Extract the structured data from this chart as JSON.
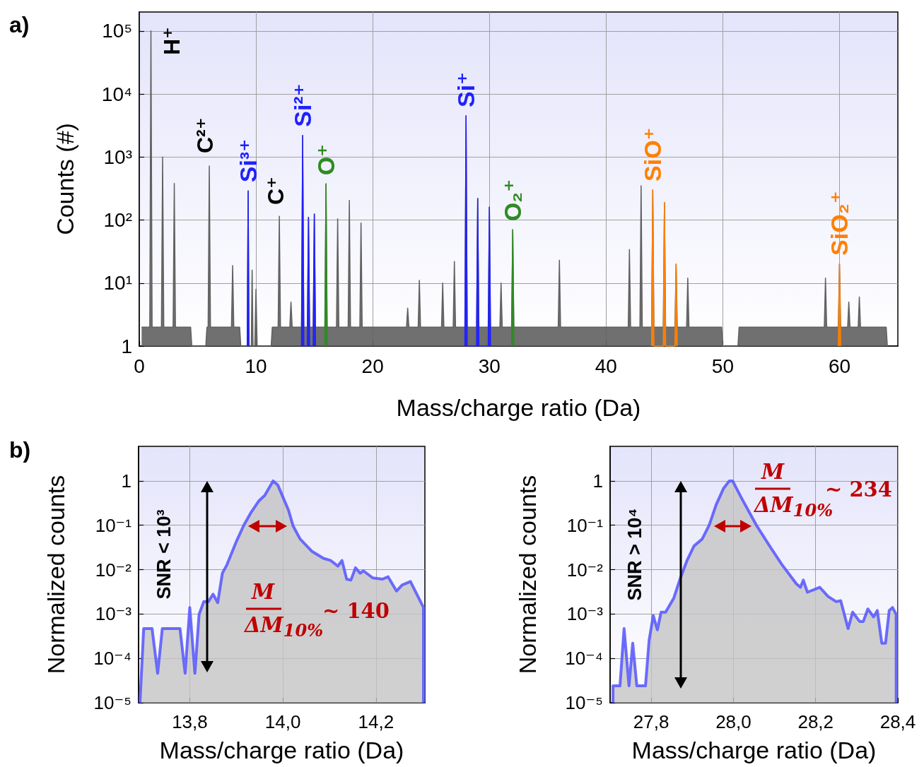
{
  "chart_data": [
    {
      "type": "area",
      "title": "a)",
      "xlabel": "Mass/charge ratio (Da)",
      "ylabel": "Counts (#)",
      "xlim": [
        0,
        65
      ],
      "xticks": [
        0,
        10,
        20,
        30,
        40,
        50,
        60
      ],
      "ylim": [
        1,
        200000
      ],
      "yticks": [
        {
          "value": 1,
          "label": "1"
        },
        {
          "value": 10,
          "label": "10¹"
        },
        {
          "value": 100,
          "label": "10²"
        },
        {
          "value": 1000,
          "label": "10³"
        },
        {
          "value": 10000,
          "label": "10⁴"
        },
        {
          "value": 100000,
          "label": "10⁵"
        }
      ],
      "log": "y",
      "grid": true,
      "annotations": [
        "H⁺",
        "C²⁺",
        "C⁺"
      ],
      "series": [
        {
          "color": "#606060",
          "x": [
            0.2,
            0.9,
            1,
            1.1,
            1.9,
            2,
            2.1,
            2.9,
            3,
            3.1,
            4.4,
            4.5,
            5.7,
            5.8,
            5.9,
            6,
            6.1,
            7.9,
            8,
            8.1,
            8.6,
            8.7,
            9.25,
            9.33,
            9.4,
            9.6,
            9.67,
            9.75,
            9.9,
            10,
            10.1,
            11.3,
            11.4,
            11.9,
            12,
            12.1,
            12.9,
            13,
            13.1,
            13.9,
            14,
            14.1,
            14.4,
            14.5,
            14.6,
            14.9,
            15,
            15.1,
            15.9,
            16,
            16.1,
            16.9,
            17,
            17.1,
            17.9,
            18,
            18.1,
            18.9,
            19,
            19.1,
            22.9,
            23,
            23.1,
            23.9,
            24,
            24.1,
            25.9,
            26,
            26.1,
            26.9,
            27,
            27.1,
            27.9,
            28,
            28.1,
            28.9,
            29,
            29.1,
            29.9,
            30,
            30.1,
            30.9,
            31,
            31.1,
            31.9,
            32,
            32.1,
            35.9,
            36,
            36.1,
            41.9,
            42,
            42.1,
            42.9,
            43,
            43.1,
            43.9,
            44,
            44.1,
            44.9,
            45,
            45.1,
            45.9,
            46,
            46.1,
            46.9,
            47,
            47.1,
            49.9,
            50,
            51.3,
            51.4,
            58.7,
            58.8,
            58.9,
            59.9,
            60,
            60.1,
            60.7,
            60.8,
            60.9,
            61.6,
            61.7,
            61.8,
            64,
            64.1
          ],
          "values": [
            2,
            2,
            100000,
            2,
            2,
            1000,
            2,
            2,
            380,
            2,
            2,
            1,
            1,
            2,
            2,
            720,
            2,
            2,
            19,
            2,
            2,
            1,
            1,
            290,
            1,
            1,
            16,
            1,
            1,
            8,
            1,
            1,
            2,
            2,
            115,
            2,
            2,
            5,
            2,
            2,
            2200,
            2,
            2,
            110,
            2,
            2,
            125,
            2,
            2,
            375,
            2,
            2,
            105,
            2,
            2,
            205,
            2,
            2,
            90,
            2,
            2,
            4,
            2,
            2,
            11,
            2,
            2,
            10,
            2,
            2,
            22,
            2,
            2,
            4500,
            2,
            2,
            220,
            2,
            2,
            160,
            2,
            2,
            10,
            2,
            2,
            70,
            2,
            2,
            23,
            2,
            2,
            34,
            2,
            2,
            350,
            2,
            2,
            300,
            2,
            2,
            190,
            2,
            2,
            20,
            2,
            2,
            12,
            2,
            2,
            1,
            1,
            2,
            2,
            12,
            2,
            2,
            20,
            2,
            2,
            5,
            2,
            2,
            6,
            2,
            2,
            1
          ]
        },
        {
          "name": "Si³⁺",
          "color": "#2020ff",
          "x": [
            9.25,
            9.33,
            9.4
          ],
          "values": [
            1,
            290,
            1
          ]
        },
        {
          "name": "Si²⁺",
          "color": "#2020ff",
          "x": [
            13.9,
            14,
            14.1,
            14.4,
            14.5,
            14.6,
            14.9,
            15,
            15.1
          ],
          "values": [
            1,
            2200,
            1,
            1,
            110,
            1,
            1,
            125,
            1
          ]
        },
        {
          "name": "Si⁺",
          "color": "#2020ff",
          "x": [
            27.9,
            28,
            28.1,
            28.9,
            29,
            29.1,
            29.9,
            30,
            30.1
          ],
          "values": [
            1,
            4500,
            1,
            1,
            220,
            1,
            1,
            160,
            1
          ]
        },
        {
          "name": "O⁺",
          "color": "#2e8b22",
          "x": [
            15.9,
            16,
            16.1
          ],
          "values": [
            1,
            375,
            1
          ]
        },
        {
          "name": "O₂⁺",
          "color": "#2e8b22",
          "x": [
            31.9,
            32,
            32.1
          ],
          "values": [
            1,
            70,
            1
          ]
        },
        {
          "name": "SiO⁺",
          "color": "#ff8000",
          "x": [
            43.9,
            44,
            44.1,
            44.9,
            45,
            45.1,
            45.9,
            46,
            46.1
          ],
          "values": [
            1,
            300,
            1,
            1,
            190,
            1,
            1,
            20,
            1
          ]
        },
        {
          "name": "SiO₂⁺",
          "color": "#ff8000",
          "x": [
            59.9,
            60,
            60.1
          ],
          "values": [
            1,
            20,
            1
          ]
        }
      ]
    },
    {
      "type": "area",
      "title": "b)",
      "xlabel": "Mass/charge ratio (Da)",
      "ylabel": "Normalized counts",
      "xlim": [
        13.69,
        14.305
      ],
      "xticks": [
        {
          "value": 13.8,
          "label": "13,8"
        },
        {
          "value": 14.0,
          "label": "14,0"
        },
        {
          "value": 14.2,
          "label": "14,2"
        }
      ],
      "ylim": [
        1e-05,
        6
      ],
      "yticks": [
        {
          "value": 1e-05,
          "label": "10⁻⁵"
        },
        {
          "value": 0.0001,
          "label": "10⁻⁴"
        },
        {
          "value": 0.001,
          "label": "10⁻³"
        },
        {
          "value": 0.01,
          "label": "10⁻²"
        },
        {
          "value": 0.1,
          "label": "10⁻¹"
        },
        {
          "value": 1,
          "label": "1"
        }
      ],
      "log": "y",
      "grid": true,
      "annotations": [
        "SNR < 10³",
        "M",
        "ΔM$_{10%}$",
        "~ 140"
      ],
      "series": [
        {
          "color": "#5555ff",
          "x": [
            13.693,
            13.701,
            13.719,
            13.731,
            13.741,
            13.779,
            13.79,
            13.8,
            13.811,
            13.82,
            13.83,
            13.84,
            13.85,
            13.86,
            13.87,
            13.88,
            13.9,
            13.916,
            13.931,
            13.948,
            13.961,
            13.979,
            13.989,
            14.012,
            14.022,
            14.037,
            14.062,
            14.087,
            14.103,
            14.118,
            14.127,
            14.137,
            14.146,
            14.156,
            14.166,
            14.173,
            14.193,
            14.214,
            14.226,
            14.244,
            14.256,
            14.274,
            14.302,
            14.302
          ],
          "values": [
            1e-05,
            0.00047,
            0.00047,
            4.6e-05,
            0.00047,
            0.00047,
            4.6e-05,
            0.0014,
            4.6e-05,
            0.00098,
            0.0019,
            0.0019,
            0.0028,
            0.0018,
            0.0083,
            0.013,
            0.043,
            0.1,
            0.19,
            0.35,
            0.47,
            1,
            0.81,
            0.22,
            0.096,
            0.049,
            0.026,
            0.018,
            0.016,
            0.012,
            0.016,
            0.0061,
            0.0058,
            0.011,
            0.0083,
            0.0094,
            0.0065,
            0.0061,
            0.0069,
            0.0033,
            0.0045,
            0.0054,
            0.0014,
            1e-05
          ]
        }
      ]
    },
    {
      "type": "area",
      "xlabel": "Mass/charge ratio (Da)",
      "ylabel": "Normalized counts",
      "xlim": [
        27.7,
        28.4
      ],
      "xticks": [
        {
          "value": 27.8,
          "label": "27,8"
        },
        {
          "value": 28.0,
          "label": "28,0"
        },
        {
          "value": 28.2,
          "label": "28,2"
        },
        {
          "value": 28.4,
          "label": "28,4"
        }
      ],
      "ylim": [
        1e-05,
        6
      ],
      "yticks": [
        {
          "value": 1e-05,
          "label": "10⁻⁵"
        },
        {
          "value": 0.0001,
          "label": "10⁻⁴"
        },
        {
          "value": 0.001,
          "label": "10⁻³"
        },
        {
          "value": 0.01,
          "label": "10⁻²"
        },
        {
          "value": 0.1,
          "label": "10⁻¹"
        },
        {
          "value": 1,
          "label": "1"
        }
      ],
      "log": "y",
      "grid": true,
      "annotations": [
        "SNR > 10⁴",
        "M",
        "ΔM$_{10%}$",
        "~ 234"
      ],
      "series": [
        {
          "color": "#5555ff",
          "x": [
            27.707,
            27.707,
            27.724,
            27.734,
            27.746,
            27.755,
            27.765,
            27.786,
            27.795,
            27.805,
            27.815,
            27.824,
            27.835,
            27.855,
            27.87,
            27.887,
            27.904,
            27.924,
            27.941,
            27.958,
            27.976,
            27.99,
            27.998,
            28.021,
            28.056,
            28.09,
            28.118,
            28.153,
            28.163,
            28.17,
            28.18,
            28.21,
            28.23,
            28.25,
            28.261,
            28.279,
            28.29,
            28.307,
            28.316,
            28.327,
            28.341,
            28.35,
            28.361,
            28.37,
            28.379,
            28.387,
            28.396,
            28.396
          ],
          "values": [
            1e-05,
            2.4e-05,
            2.4e-05,
            0.00047,
            2.4e-05,
            0.00022,
            2.4e-05,
            2.4e-05,
            0.00026,
            0.00092,
            0.00044,
            0.0011,
            0.0011,
            0.0023,
            0.0061,
            0.016,
            0.034,
            0.049,
            0.1,
            0.29,
            0.68,
            1,
            1,
            0.39,
            0.1,
            0.032,
            0.013,
            0.0048,
            0.004,
            0.0058,
            0.0031,
            0.004,
            0.0025,
            0.0019,
            0.002,
            0.00047,
            0.0011,
            0.00068,
            0.00068,
            0.0013,
            0.00086,
            0.0012,
            0.00022,
            0.00022,
            0.0012,
            0.0014,
            0.00098,
            1e-05
          ]
        }
      ]
    }
  ]
}
